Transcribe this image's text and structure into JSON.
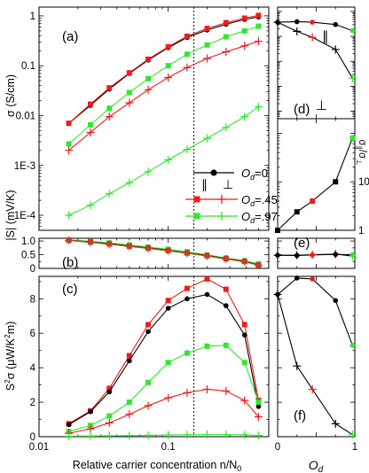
{
  "chart_data": [
    {
      "panel_id": "a",
      "panel_label": "(a)",
      "type": "line",
      "ylabel": "σ (S/cm)",
      "yscale": "log",
      "ylim": [
        5e-05,
        1.5
      ],
      "xscale": "log",
      "xlim": [
        0.01,
        0.6
      ],
      "yticks": [
        {
          "v": 0.0001,
          "label": "1E-4"
        },
        {
          "v": 0.001,
          "label": "1E-3"
        },
        {
          "v": 0.01,
          "label": "0.01"
        },
        {
          "v": 0.1,
          "label": "0.1"
        },
        {
          "v": 1,
          "label": "1"
        }
      ],
      "vline_x": 0.158,
      "legend_header": {
        "parallel": "∥",
        "perpendicular": "⊥"
      },
      "legend": [
        {
          "series": "black",
          "label": "Od=0",
          "label_main": "O",
          "label_sub": "d",
          "label_rest": "=0"
        },
        {
          "series": "red",
          "label": "Od=.45",
          "label_main": "O",
          "label_sub": "d",
          "label_rest": "=.45"
        },
        {
          "series": "green",
          "label": "Od=.97",
          "label_main": "O",
          "label_sub": "d",
          "label_rest": "=.97"
        }
      ],
      "series": [
        {
          "id": "black",
          "color": "#000000",
          "marker": "circle",
          "x": [
            0.017,
            0.025,
            0.035,
            0.05,
            0.07,
            0.1,
            0.14,
            0.2,
            0.28,
            0.39,
            0.5
          ],
          "y": [
            0.007,
            0.016,
            0.034,
            0.07,
            0.13,
            0.23,
            0.37,
            0.52,
            0.68,
            0.85,
            0.95
          ]
        },
        {
          "id": "red_par",
          "color": "#ee1c1c",
          "marker": "square",
          "x": [
            0.017,
            0.025,
            0.035,
            0.05,
            0.07,
            0.1,
            0.14,
            0.2,
            0.28,
            0.39,
            0.5
          ],
          "y": [
            0.007,
            0.017,
            0.036,
            0.072,
            0.135,
            0.24,
            0.39,
            0.56,
            0.73,
            0.9,
            1.02
          ]
        },
        {
          "id": "red_perp",
          "color": "#ee1c1c",
          "marker": "plus",
          "x": [
            0.017,
            0.025,
            0.035,
            0.05,
            0.07,
            0.1,
            0.14,
            0.2,
            0.28,
            0.39,
            0.5
          ],
          "y": [
            0.002,
            0.0046,
            0.0095,
            0.018,
            0.033,
            0.058,
            0.092,
            0.14,
            0.19,
            0.25,
            0.31
          ]
        },
        {
          "id": "green_par",
          "color": "#2ee82e",
          "marker": "square",
          "x": [
            0.017,
            0.025,
            0.035,
            0.05,
            0.07,
            0.1,
            0.14,
            0.2,
            0.28,
            0.39,
            0.5
          ],
          "y": [
            0.0027,
            0.0065,
            0.014,
            0.029,
            0.055,
            0.1,
            0.17,
            0.26,
            0.38,
            0.5,
            0.62
          ]
        },
        {
          "id": "green_perp",
          "color": "#2ee82e",
          "marker": "plus",
          "x": [
            0.017,
            0.025,
            0.035,
            0.05,
            0.07,
            0.1,
            0.14,
            0.2,
            0.28,
            0.39,
            0.5
          ],
          "y": [
            0.0001,
            0.00016,
            0.00027,
            0.00045,
            0.00075,
            0.0013,
            0.0021,
            0.0035,
            0.0058,
            0.0095,
            0.015
          ]
        }
      ]
    },
    {
      "panel_id": "b",
      "panel_label": "(b)",
      "type": "line",
      "ylabel": "|S| (mV/K)",
      "yscale": "linear",
      "ylim": [
        0,
        1.1
      ],
      "xscale": "log",
      "xlim": [
        0.01,
        0.6
      ],
      "yticks": [
        {
          "v": 0,
          "label": "0"
        },
        {
          "v": 0.5,
          "label": "0.5"
        },
        {
          "v": 1,
          "label": "1.0"
        }
      ],
      "vline_x": 0.158,
      "series": [
        {
          "id": "green",
          "color": "#2ee82e",
          "marker": "square",
          "x": [
            0.017,
            0.025,
            0.035,
            0.05,
            0.07,
            0.1,
            0.14,
            0.2,
            0.28,
            0.39,
            0.5
          ],
          "y": [
            1.04,
            0.99,
            0.93,
            0.86,
            0.78,
            0.7,
            0.61,
            0.49,
            0.38,
            0.28,
            0.16
          ]
        },
        {
          "id": "black",
          "color": "#000000",
          "marker": "circle",
          "x": [
            0.017,
            0.025,
            0.035,
            0.05,
            0.07,
            0.1,
            0.14,
            0.2,
            0.28,
            0.39,
            0.5
          ],
          "y": [
            1.03,
            0.97,
            0.9,
            0.82,
            0.75,
            0.66,
            0.57,
            0.47,
            0.36,
            0.26,
            0.13
          ]
        },
        {
          "id": "red",
          "color": "#ee1c1c",
          "marker": "square",
          "x": [
            0.017,
            0.025,
            0.035,
            0.05,
            0.07,
            0.1,
            0.14,
            0.2,
            0.28,
            0.39,
            0.5
          ],
          "y": [
            1.03,
            0.96,
            0.89,
            0.81,
            0.74,
            0.65,
            0.56,
            0.46,
            0.35,
            0.25,
            0.12
          ]
        },
        {
          "id": "brown",
          "color": "#a05a2c",
          "marker": "plus",
          "x": [
            0.017,
            0.025,
            0.035,
            0.05,
            0.07,
            0.1,
            0.14,
            0.2,
            0.28,
            0.39,
            0.5
          ],
          "y": [
            1.02,
            0.95,
            0.88,
            0.8,
            0.73,
            0.64,
            0.55,
            0.45,
            0.34,
            0.24,
            0.11
          ]
        }
      ]
    },
    {
      "panel_id": "c",
      "panel_label": "(c)",
      "type": "line",
      "ylabel": "S²σ (μW/K²m)",
      "ylabel_main": "S",
      "ylabel_sup": "2",
      "ylabel_mid": "σ (μW/K",
      "ylabel_sup2": "2",
      "ylabel_end": "m)",
      "yscale": "linear",
      "ylim": [
        0,
        9.3
      ],
      "xscale": "log",
      "xlim": [
        0.01,
        0.6
      ],
      "xlabel": "Relative carrier concentration n/N0",
      "xlabel_main": "Relative carrier concentration n/N",
      "xlabel_sub": "0",
      "xticks": [
        {
          "v": 0.01,
          "label": "0.01"
        },
        {
          "v": 0.1,
          "label": "0.1"
        }
      ],
      "yticks": [
        {
          "v": 0,
          "label": "0"
        },
        {
          "v": 2,
          "label": "2"
        },
        {
          "v": 4,
          "label": "4"
        },
        {
          "v": 6,
          "label": "6"
        },
        {
          "v": 8,
          "label": "8"
        }
      ],
      "vline_x": 0.158,
      "series": [
        {
          "id": "red_par",
          "color": "#ee1c1c",
          "marker": "square",
          "x": [
            0.017,
            0.025,
            0.035,
            0.05,
            0.07,
            0.1,
            0.14,
            0.2,
            0.28,
            0.39,
            0.5
          ],
          "y": [
            0.75,
            1.5,
            2.8,
            4.7,
            6.5,
            7.9,
            8.6,
            9.15,
            8.55,
            6.5,
            2.1
          ]
        },
        {
          "id": "black",
          "color": "#000000",
          "marker": "circle",
          "x": [
            0.017,
            0.025,
            0.035,
            0.05,
            0.07,
            0.1,
            0.14,
            0.2,
            0.28,
            0.39,
            0.5
          ],
          "y": [
            0.7,
            1.45,
            2.6,
            4.4,
            6.1,
            7.45,
            8.0,
            8.25,
            7.6,
            5.9,
            1.75
          ]
        },
        {
          "id": "green_par",
          "color": "#2ee82e",
          "marker": "square",
          "x": [
            0.017,
            0.025,
            0.035,
            0.05,
            0.07,
            0.1,
            0.14,
            0.2,
            0.28,
            0.39,
            0.5
          ],
          "y": [
            0.3,
            0.65,
            1.2,
            2.0,
            3.15,
            4.3,
            4.85,
            5.25,
            5.3,
            4.3,
            2.0
          ]
        },
        {
          "id": "red_perp",
          "color": "#ee1c1c",
          "marker": "plus",
          "x": [
            0.017,
            0.025,
            0.035,
            0.05,
            0.07,
            0.1,
            0.14,
            0.2,
            0.28,
            0.39,
            0.5
          ],
          "y": [
            0.2,
            0.45,
            0.8,
            1.3,
            1.8,
            2.25,
            2.55,
            2.75,
            2.65,
            2.1,
            1.15
          ]
        },
        {
          "id": "green_perp",
          "color": "#2ee82e",
          "marker": "plus",
          "x": [
            0.017,
            0.025,
            0.035,
            0.05,
            0.07,
            0.1,
            0.14,
            0.2,
            0.28,
            0.39,
            0.5
          ],
          "y": [
            0.03,
            0.04,
            0.05,
            0.06,
            0.08,
            0.1,
            0.11,
            0.12,
            0.12,
            0.11,
            0.07
          ]
        }
      ]
    },
    {
      "panel_id": "d",
      "panel_label": "(d)",
      "type": "line",
      "xscale": "linear",
      "xlim": [
        0,
        1
      ],
      "yscale": "log",
      "ylim": [
        5e-05,
        1.5
      ],
      "annotations": {
        "parallel": "∥",
        "perpendicular": "⊥"
      },
      "series": [
        {
          "id": "par",
          "color": "#000000",
          "marker": "circle_colored",
          "x": [
            0,
            0.25,
            0.45,
            0.75,
            0.97
          ],
          "y": [
            0.37,
            0.39,
            0.37,
            0.3,
            0.17
          ],
          "marker_colors": [
            "#000000",
            "#000000",
            "#ee1c1c",
            "#000000",
            "#2ee82e"
          ]
        },
        {
          "id": "perp",
          "color": "#000000",
          "marker": "plus_colored",
          "x": [
            0,
            0.25,
            0.45,
            0.75,
            0.97
          ],
          "y": [
            0.37,
            0.16,
            0.092,
            0.03,
            0.0021
          ],
          "marker_colors": [
            "#000000",
            "#000000",
            "#ee1c1c",
            "#000000",
            "#2ee82e"
          ]
        }
      ]
    },
    {
      "panel_id": "d_inset",
      "type": "line",
      "xscale": "linear",
      "xlim": [
        0,
        1
      ],
      "yscale": "log",
      "ylim": [
        1,
        200
      ],
      "ylabel": "σ∥/σ⊥",
      "ylabel_main": "σ",
      "ylabel_sub1": "∥",
      "ylabel_mid": "/σ",
      "ylabel_sub2": "⊥",
      "yticks": [
        {
          "v": 1,
          "label": "1"
        },
        {
          "v": 10,
          "label": "10"
        }
      ],
      "series": [
        {
          "id": "ratio",
          "color": "#000000",
          "marker": "square_colored",
          "x": [
            0,
            0.25,
            0.45,
            0.75,
            0.97
          ],
          "y": [
            1,
            2.4,
            4,
            10,
            80
          ],
          "marker_colors": [
            "#000000",
            "#000000",
            "#ee1c1c",
            "#000000",
            "#2ee82e"
          ]
        }
      ]
    },
    {
      "panel_id": "e",
      "panel_label": "(e)",
      "type": "line",
      "xscale": "linear",
      "xlim": [
        0,
        1
      ],
      "yscale": "linear",
      "ylim": [
        0,
        1.1
      ],
      "series": [
        {
          "id": "s",
          "color": "#000000",
          "marker": "circle_colored",
          "x": [
            0,
            0.25,
            0.45,
            0.75,
            0.97
          ],
          "y": [
            0.48,
            0.47,
            0.49,
            0.51,
            0.5
          ],
          "marker_colors": [
            "#000000",
            "#000000",
            "#ee1c1c",
            "#000000",
            "#2ee82e"
          ]
        },
        {
          "id": "s_perp",
          "color": "#000000",
          "marker": "plus_colored",
          "x": [
            0,
            0.25,
            0.45,
            0.75,
            0.97
          ],
          "y": [
            0.48,
            0.48,
            0.5,
            0.52,
            0.45
          ],
          "marker_colors": [
            "#000000",
            "#000000",
            "#ee1c1c",
            "#000000",
            "#2ee82e"
          ]
        }
      ]
    },
    {
      "panel_id": "f",
      "panel_label": "(f)",
      "type": "line",
      "xscale": "linear",
      "xlim": [
        0,
        1
      ],
      "yscale": "linear",
      "ylim": [
        0,
        9.3
      ],
      "xlabel": "Od",
      "xlabel_main": "O",
      "xlabel_sub": "d",
      "xticks": [
        {
          "v": 0,
          "label": "0"
        },
        {
          "v": 1,
          "label": "1"
        }
      ],
      "series": [
        {
          "id": "par",
          "color": "#000000",
          "marker": "circle_colored",
          "x": [
            0,
            0.25,
            0.45,
            0.75,
            0.97
          ],
          "y": [
            8.25,
            9.2,
            9.15,
            7.9,
            5.3
          ],
          "marker_colors": [
            "#000000",
            "#000000",
            "#ee1c1c",
            "#000000",
            "#2ee82e"
          ]
        },
        {
          "id": "perp",
          "color": "#000000",
          "marker": "plus_colored",
          "x": [
            0,
            0.25,
            0.45,
            0.75,
            0.97
          ],
          "y": [
            8.25,
            4.1,
            2.75,
            0.75,
            0.12
          ],
          "marker_colors": [
            "#000000",
            "#000000",
            "#ee1c1c",
            "#000000",
            "#2ee82e"
          ]
        }
      ]
    }
  ]
}
